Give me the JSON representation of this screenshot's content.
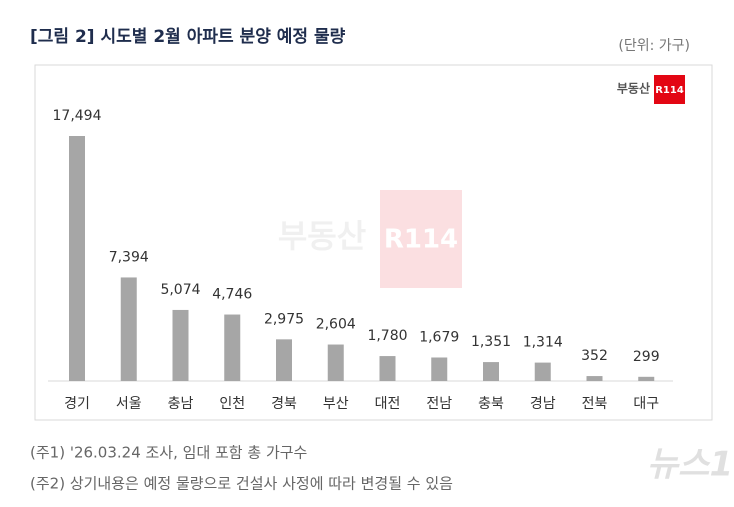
{
  "chart_data": {
    "type": "bar",
    "title": "[그림 2] 시도별 2월 아파트 분양 예정 물량",
    "unit": "(단위: 가구)",
    "logo": {
      "name": "부동산",
      "mark": "R114"
    },
    "categories": [
      "경기",
      "서울",
      "충남",
      "인천",
      "경북",
      "부산",
      "대전",
      "전남",
      "충북",
      "경남",
      "전북",
      "대구"
    ],
    "values": [
      17494,
      7394,
      5074,
      4746,
      2975,
      2604,
      1780,
      1679,
      1351,
      1314,
      352,
      299
    ],
    "value_labels": [
      "17,494",
      "7,394",
      "5,074",
      "4,746",
      "2,975",
      "2,604",
      "1,780",
      "1,679",
      "1,351",
      "1,314",
      "352",
      "299"
    ],
    "color": "#a6a6a6",
    "notes": [
      "(주1) '26.03.24 조사, 임대 포함 총 가구수",
      "(주2) 상기내용은 예정 물량으로 건설사 사정에 따라 변경될 수 있음"
    ],
    "watermark": "뉴스1"
  }
}
